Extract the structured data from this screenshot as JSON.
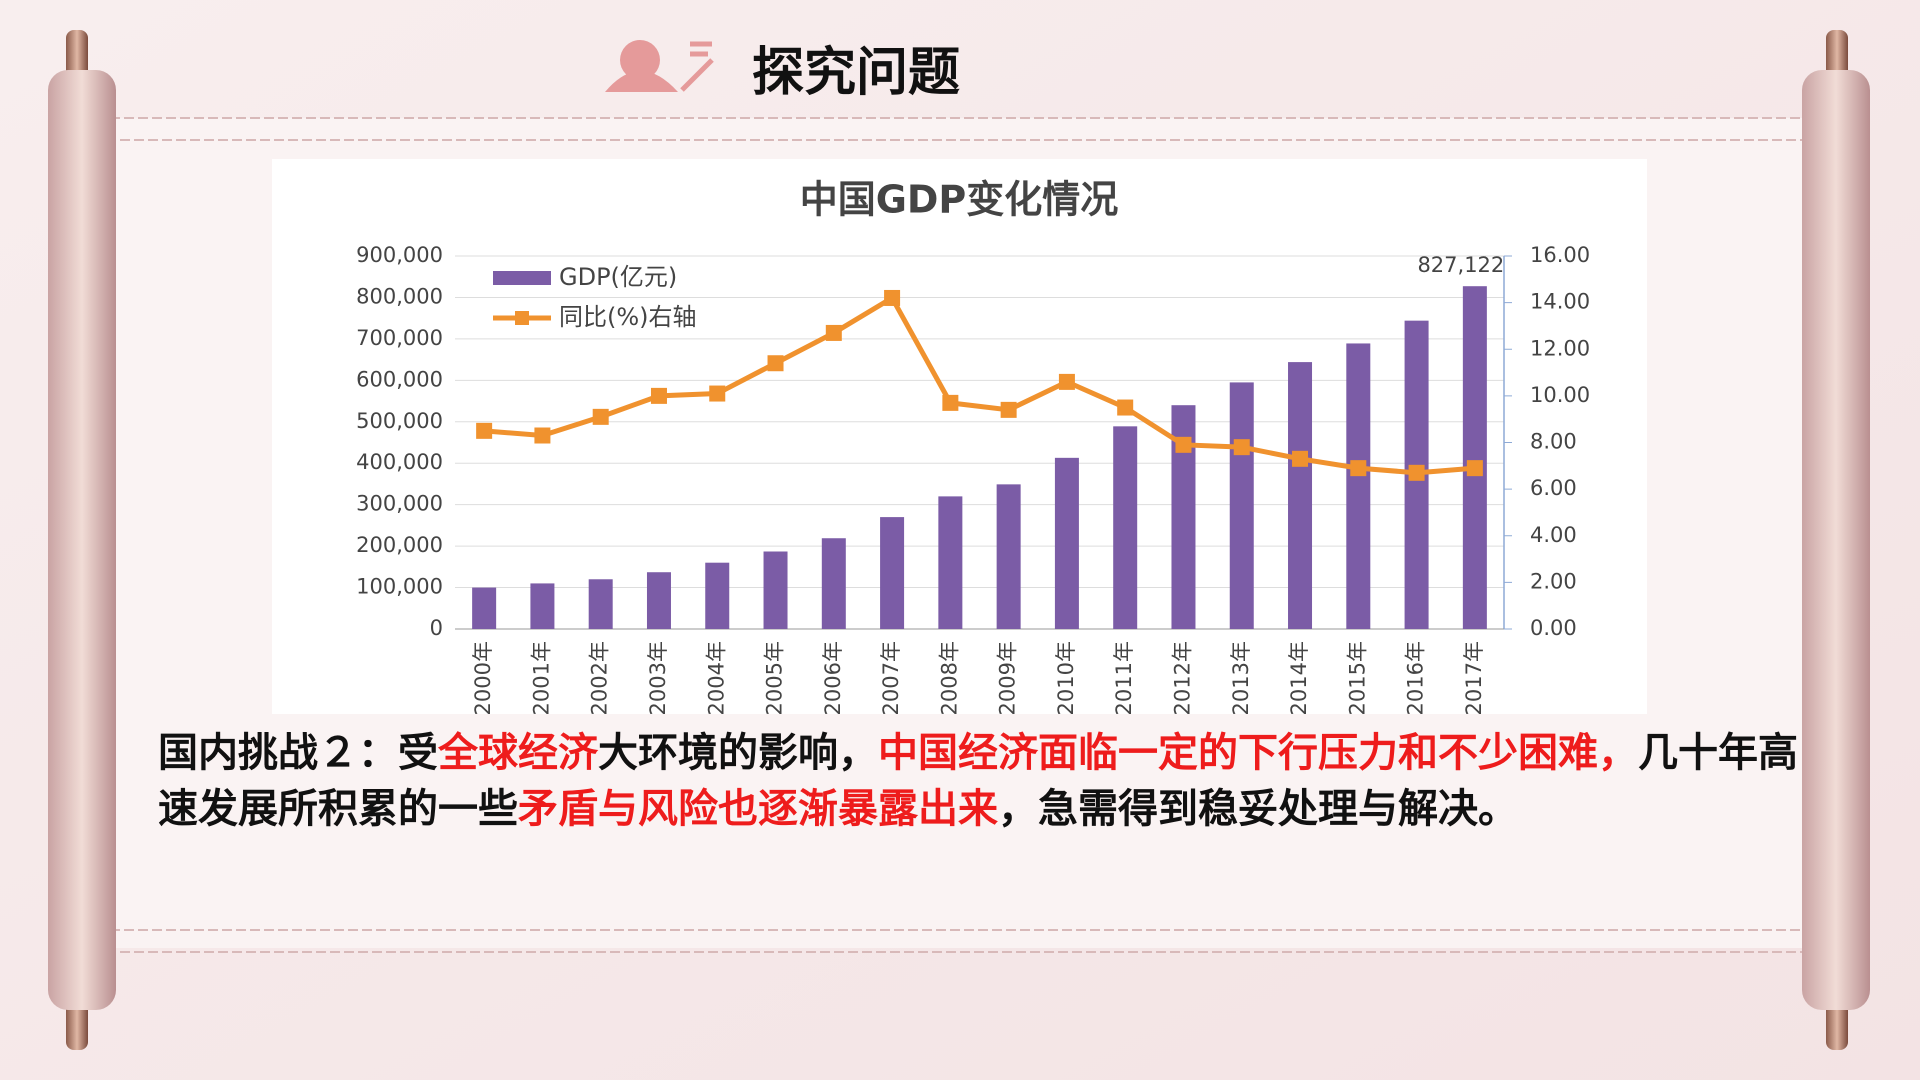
{
  "slide": {
    "heading": "探究问题",
    "paragraph": [
      {
        "text": "国内挑战２：受",
        "color": "#111111"
      },
      {
        "text": "全球经济",
        "color": "#ee1c1c"
      },
      {
        "text": "大环境的影响，",
        "color": "#111111"
      },
      {
        "text": "中国经济面临一定的下行压力和不少困难，",
        "color": "#ee1c1c"
      },
      {
        "text": "几十年高速发展所积累的一些",
        "color": "#111111"
      },
      {
        "text": "矛盾与风险也逐渐暴露出来",
        "color": "#ee1c1c"
      },
      {
        "text": "，急需得到稳妥处理与解决。",
        "color": "#111111"
      }
    ]
  },
  "chart_data": {
    "type": "bar-line",
    "title": "中国GDP变化情况",
    "categories": [
      "2000年",
      "2001年",
      "2002年",
      "2003年",
      "2004年",
      "2005年",
      "2006年",
      "2007年",
      "2008年",
      "2009年",
      "2010年",
      "2011年",
      "2012年",
      "2013年",
      "2014年",
      "2015年",
      "2016年",
      "2017年"
    ],
    "series": [
      {
        "name": "GDP(亿元)",
        "type": "bar",
        "color": "#7b5ca6",
        "values": [
          100000,
          110000,
          120000,
          137000,
          160000,
          187000,
          219000,
          270000,
          320000,
          349000,
          413000,
          489000,
          540000,
          595000,
          644000,
          689000,
          744000,
          827122
        ],
        "value_labels": [
          null,
          null,
          null,
          null,
          null,
          null,
          null,
          null,
          null,
          null,
          null,
          null,
          null,
          null,
          null,
          null,
          null,
          "827,122"
        ]
      },
      {
        "name": "同比(%)右轴",
        "type": "line",
        "axis": "y2",
        "color": "#f0922e",
        "values": [
          8.5,
          8.3,
          9.1,
          10.0,
          10.1,
          11.4,
          12.7,
          14.2,
          9.7,
          9.4,
          10.6,
          9.5,
          7.9,
          7.8,
          7.3,
          6.9,
          6.7,
          6.9
        ]
      }
    ],
    "ylim": [
      0,
      900000
    ],
    "yticks": [
      0,
      {
        "value": 100000,
        "label": "100,000"
      },
      {
        "value": 200000,
        "label": "200,000"
      },
      {
        "value": 300000,
        "label": "300,000"
      },
      {
        "value": 400000,
        "label": "400,000"
      },
      {
        "value": 500000,
        "label": "500,000"
      },
      {
        "value": 600000,
        "label": "600,000"
      },
      {
        "value": 700000,
        "label": "700,000"
      },
      {
        "value": 800000,
        "label": "800,000"
      },
      {
        "value": 900000,
        "label": "900,000"
      }
    ],
    "y2lim": [
      0,
      16
    ],
    "y2ticks": [
      {
        "value": 0,
        "label": "0.00"
      },
      {
        "value": 2,
        "label": "2.00"
      },
      {
        "value": 4,
        "label": "4.00"
      },
      {
        "value": 6,
        "label": "6.00"
      },
      {
        "value": 8,
        "label": "8.00"
      },
      {
        "value": 10,
        "label": "10.00"
      },
      {
        "value": 12,
        "label": "12.00"
      },
      {
        "value": 14,
        "label": "14.00"
      },
      {
        "value": 16,
        "label": "16.00"
      }
    ],
    "grid": true,
    "legend": "top-left"
  }
}
